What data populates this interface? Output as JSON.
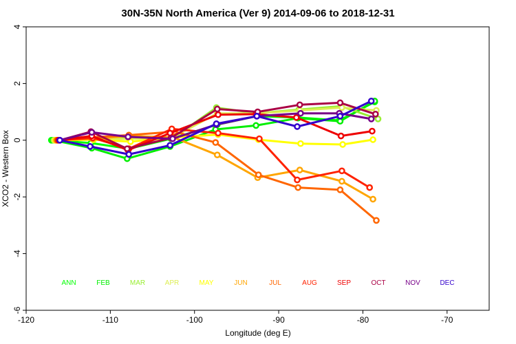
{
  "chart_data": {
    "type": "line",
    "title": "30N-35N North America (Ver 9)   2014-09-06 to 2018-12-31",
    "xlabel": "Longitude (deg E)",
    "ylabel": "XCO2 - Western Box",
    "xlim": [
      -120,
      -65
    ],
    "ylim": [
      -6,
      4
    ],
    "xticks": [
      -120,
      -110,
      -100,
      -90,
      -80,
      -70
    ],
    "yticks": [
      -6,
      -4,
      -2,
      0,
      2,
      4
    ],
    "series": [
      {
        "name": "ANN",
        "color": "#00ff00",
        "x": [
          -117,
          -112.3,
          -107.8,
          -102.8,
          -97.3,
          -92.6,
          -87.8,
          -82.8,
          -78.6
        ],
        "y": [
          0,
          -0.1,
          -0.3,
          0.05,
          0.55,
          0.85,
          0.8,
          0.7,
          1.35
        ]
      },
      {
        "name": "FEB",
        "color": "#00ee00",
        "x": [
          -116.8,
          -112.2,
          -108,
          -102.9,
          -97.5,
          -92.7,
          -87.7,
          -82.7,
          -78.6
        ],
        "y": [
          0,
          -0.28,
          -0.65,
          -0.22,
          0.38,
          0.52,
          0.78,
          0.67,
          1.38
        ]
      },
      {
        "name": "MAR",
        "color": "#99ee33",
        "x": [
          -116.7,
          -112.1,
          -107.8,
          -102.7,
          -97.4,
          -92.6,
          -87.6,
          -82.6,
          -78.2
        ],
        "y": [
          0,
          0.05,
          0.08,
          0.05,
          1.15,
          0.95,
          1.08,
          1.2,
          0.75
        ]
      },
      {
        "name": "APR",
        "color": "#ddee55",
        "x": [
          -116.6,
          -112,
          -107.7,
          -102.6,
          -97.3,
          -92.5,
          -87.5,
          -82.5,
          -78.4
        ],
        "y": [
          0,
          0.02,
          0.05,
          0.1,
          0.95,
          0.95,
          1.05,
          1.15,
          1.05
        ]
      },
      {
        "name": "MAY",
        "color": "#ffff00",
        "x": [
          -116.5,
          -112,
          -107.6,
          -102.5,
          -97.2,
          -92.4,
          -87.4,
          -82.4,
          -78.8
        ],
        "y": [
          0,
          0.02,
          -0.05,
          0.1,
          0.2,
          0.02,
          -0.12,
          -0.15,
          0.02
        ]
      },
      {
        "name": "JUN",
        "color": "#ffa500",
        "x": [
          -116.4,
          -112.1,
          -107.7,
          -102.5,
          -97.3,
          -92.5,
          -87.5,
          -82.5,
          -78.8
        ],
        "y": [
          0,
          0.05,
          0.15,
          0.1,
          -0.52,
          -1.32,
          -1.05,
          -1.45,
          -2.08
        ]
      },
      {
        "name": "JUL",
        "color": "#ff6600",
        "x": [
          -116.3,
          -112.3,
          -107.8,
          -102.4,
          -97.5,
          -92.4,
          -87.7,
          -82.7,
          -78.4
        ],
        "y": [
          0,
          0.1,
          0.18,
          0.3,
          -0.08,
          -1.22,
          -1.67,
          -1.75,
          -2.83
        ]
      },
      {
        "name": "AUG",
        "color": "#ff2200",
        "x": [
          -116.2,
          -112.1,
          -107.8,
          -102.7,
          -97.2,
          -92.3,
          -87.8,
          -82.5,
          -79.2
        ],
        "y": [
          0,
          0.08,
          -0.3,
          0.4,
          0.25,
          0.05,
          -1.4,
          -1.08,
          -1.67
        ]
      },
      {
        "name": "SEP",
        "color": "#ee0000",
        "x": [
          -116.1,
          -112.2,
          -107.9,
          -102.9,
          -97.2,
          -92.7,
          -87.9,
          -82.6,
          -78.9
        ],
        "y": [
          0,
          0.15,
          -0.35,
          0.25,
          0.9,
          0.92,
          0.8,
          0.15,
          0.32
        ]
      },
      {
        "name": "OCT",
        "color": "#aa0044",
        "x": [
          -116,
          -112.3,
          -108,
          -102.8,
          -97.3,
          -92.5,
          -87.5,
          -82.7,
          -78.5
        ],
        "y": [
          0,
          0.3,
          -0.3,
          0.08,
          1.1,
          1.0,
          1.25,
          1.32,
          0.92
        ]
      },
      {
        "name": "NOV",
        "color": "#770088",
        "x": [
          -116,
          -112.2,
          -107.9,
          -102.6,
          -97.4,
          -92.6,
          -87.4,
          -82.8,
          -79
        ],
        "y": [
          0,
          0.28,
          0.12,
          0.05,
          0.55,
          0.85,
          0.95,
          0.95,
          0.75
        ]
      },
      {
        "name": "DEC",
        "color": "#3300cc",
        "x": [
          -116,
          -112.4,
          -107.8,
          -102.9,
          -97.4,
          -92.6,
          -87.8,
          -82.7,
          -79
        ],
        "y": [
          0,
          -0.22,
          -0.5,
          -0.18,
          0.58,
          0.85,
          0.48,
          0.85,
          1.38
        ]
      }
    ]
  }
}
